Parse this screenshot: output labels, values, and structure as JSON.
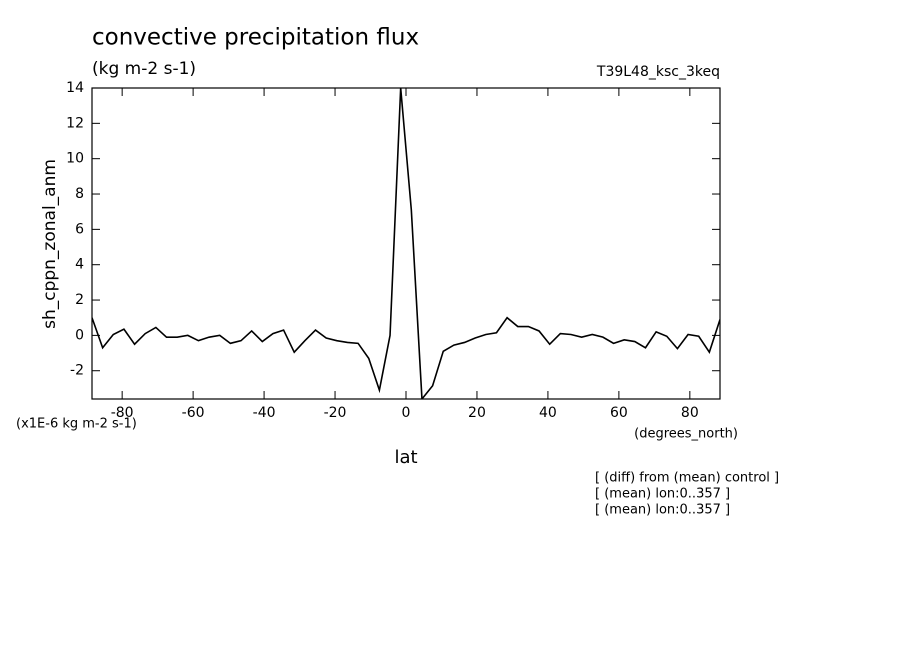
{
  "chart_data": {
    "type": "line",
    "title": "convective precipitation flux",
    "subtitle": "(kg m-2 s-1)",
    "run_label": "T39L48_ksc_3keq",
    "ylabel": "sh_cppn_zonal_anm",
    "yunits": "(x1E-6 kg m-2 s-1)",
    "xunits": "(degrees_north)",
    "xlabel": "lat",
    "notes": [
      "[ (diff) from (mean) control ]",
      "[ (mean) lon:0..357 ]",
      "[ (mean) lon:0..357 ]"
    ],
    "x": [
      -88.5,
      -85.5,
      -82.5,
      -79.5,
      -76.5,
      -73.5,
      -70.5,
      -67.5,
      -64.5,
      -61.5,
      -58.5,
      -55.5,
      -52.5,
      -49.5,
      -46.5,
      -43.5,
      -40.5,
      -37.5,
      -34.5,
      -31.5,
      -28.5,
      -25.5,
      -22.5,
      -19.5,
      -16.5,
      -13.5,
      -10.5,
      -7.5,
      -4.5,
      -1.5,
      1.5,
      4.5,
      7.5,
      10.5,
      13.5,
      16.5,
      19.5,
      22.5,
      25.5,
      28.5,
      31.5,
      34.5,
      37.5,
      40.5,
      43.5,
      46.5,
      49.5,
      52.5,
      55.5,
      58.5,
      61.5,
      64.5,
      67.5,
      70.5,
      73.5,
      76.5,
      79.5,
      82.5,
      85.5,
      88.5
    ],
    "series": [
      {
        "name": "sh_cppn_zonal_anm",
        "color": "#000000",
        "values": [
          1.0,
          -0.7,
          0.05,
          0.35,
          -0.5,
          0.1,
          0.45,
          -0.1,
          -0.1,
          0,
          -0.3,
          -0.1,
          0,
          -0.45,
          -0.3,
          0.25,
          -0.35,
          0.1,
          0.3,
          -0.95,
          -0.3,
          0.3,
          -0.15,
          -0.3,
          -0.4,
          -0.45,
          -1.3,
          -3.1,
          0,
          14,
          7.1,
          -3.6,
          -2.85,
          -0.9,
          -0.55,
          -0.4,
          -0.15,
          0.05,
          0.15,
          1.0,
          0.5,
          0.5,
          0.25,
          -0.5,
          0.1,
          0.05,
          -0.1,
          0.05,
          -0.1,
          -0.45,
          -0.25,
          -0.35,
          -0.7,
          0.2,
          -0.05,
          -0.75,
          0.05,
          -0.05,
          -0.95,
          0.9
        ]
      }
    ],
    "xlim": [
      -88.5,
      88.5
    ],
    "xticks": [
      -80,
      -60,
      -40,
      -20,
      0,
      20,
      40,
      60,
      80
    ],
    "ylim": [
      -3.6,
      14
    ],
    "yticks": [
      -2,
      0,
      2,
      4,
      6,
      8,
      10,
      12,
      14
    ],
    "grid": false
  }
}
